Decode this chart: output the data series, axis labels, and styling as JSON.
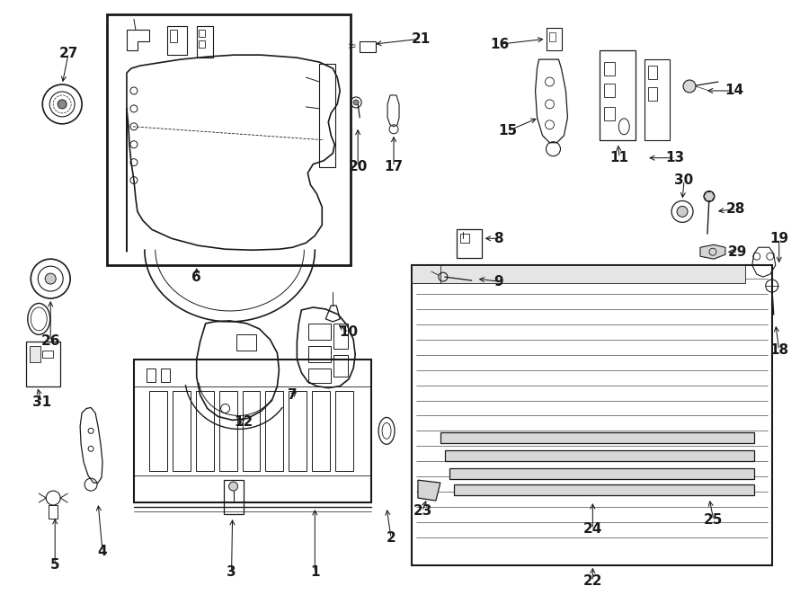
{
  "bg_color": "#ffffff",
  "line_color": "#1a1a1a",
  "fig_width": 9.0,
  "fig_height": 6.62,
  "dpi": 100,
  "label_fontsize": 10,
  "label_fontsize_sm": 9
}
